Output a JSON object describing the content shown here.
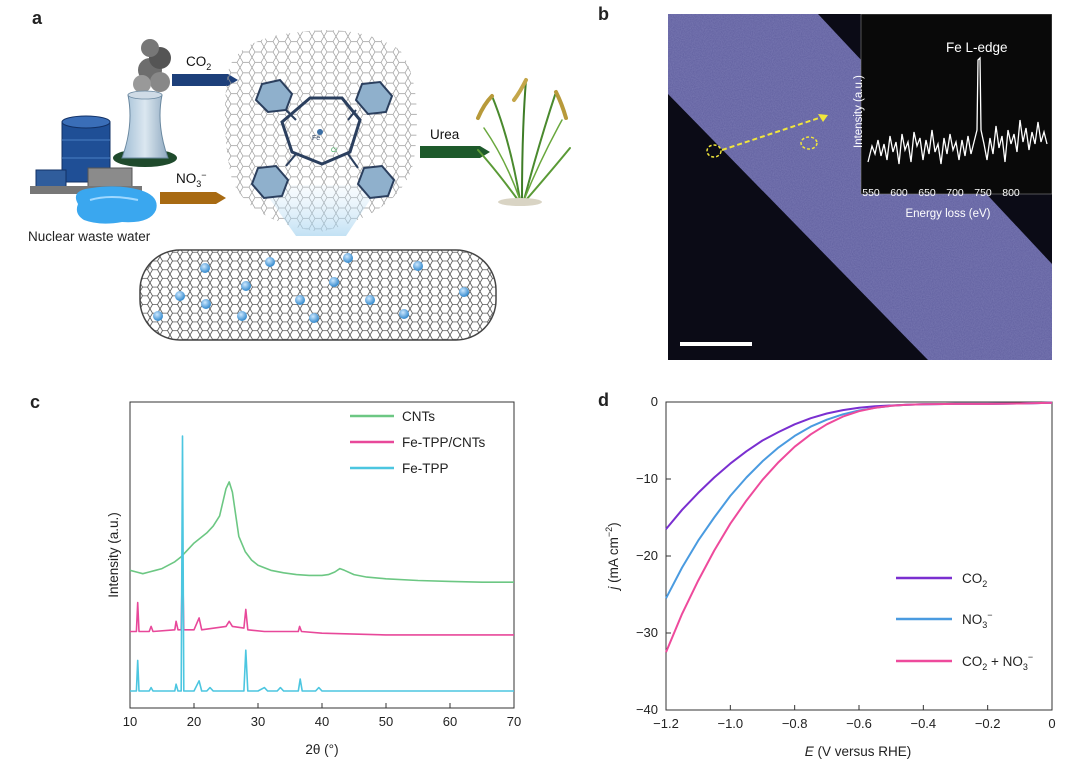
{
  "panels": {
    "a": {
      "label": "a",
      "arrows": {
        "co2": "CO",
        "co2_sub": "2",
        "no3": "NO",
        "no3_sub": "3",
        "no3_sup": "−",
        "urea": "Urea"
      },
      "source_label": "Nuclear waste water",
      "molecule_atoms": {
        "metal": "Fe",
        "ligand": "Cl"
      }
    },
    "b": {
      "label": "b",
      "inset_title": "Fe L-edge",
      "inset_ylabel": "Intensity (a.u.)",
      "inset_xlabel": "Energy loss (eV)",
      "inset_ticks": [
        "550",
        "600",
        "650",
        "700",
        "750",
        "800"
      ]
    },
    "c": {
      "label": "c"
    },
    "d": {
      "label": "d"
    }
  },
  "colors": {
    "cnts": "#6cc783",
    "fe_tpp_cnts": "#e8489a",
    "fe_tpp": "#4cc6e0",
    "co2": "#7a2fd0",
    "no3": "#4a9be0",
    "co2_no3": "#ee4a9c",
    "arrow_blue": "#1d3f7a",
    "arrow_brown": "#a86a12",
    "arrow_green": "#1e5a2b",
    "micrograph_bg": "#0b0b16",
    "tube": "#6b6aa6",
    "inset_bg": "#090909"
  },
  "chart_data": [
    {
      "id": "c",
      "type": "line",
      "xlabel": "2θ (°)",
      "ylabel": "Intensity (a.u.)",
      "xlim": [
        10,
        70
      ],
      "x_ticks": [
        10,
        20,
        30,
        40,
        50,
        60,
        70
      ],
      "legend_position": "top-right",
      "series": [
        {
          "name": "CNTs",
          "color_key": "cnts",
          "points": [
            [
              10,
              0.81
            ],
            [
              11,
              0.8
            ],
            [
              12,
              0.79
            ],
            [
              13,
              0.8
            ],
            [
              14,
              0.81
            ],
            [
              15,
              0.82
            ],
            [
              16,
              0.84
            ],
            [
              17,
              0.86
            ],
            [
              18,
              0.89
            ],
            [
              19,
              0.93
            ],
            [
              20,
              0.97
            ],
            [
              21,
              1.0
            ],
            [
              22,
              1.03
            ],
            [
              23,
              1.07
            ],
            [
              24,
              1.13
            ],
            [
              25,
              1.29
            ],
            [
              25.5,
              1.33
            ],
            [
              26,
              1.27
            ],
            [
              26.5,
              1.14
            ],
            [
              27,
              1.01
            ],
            [
              28,
              0.92
            ],
            [
              29,
              0.87
            ],
            [
              30,
              0.84
            ],
            [
              32,
              0.81
            ],
            [
              34,
              0.795
            ],
            [
              36,
              0.785
            ],
            [
              38,
              0.78
            ],
            [
              40,
              0.78
            ],
            [
              41,
              0.785
            ],
            [
              42,
              0.8
            ],
            [
              42.8,
              0.82
            ],
            [
              43.5,
              0.81
            ],
            [
              45,
              0.785
            ],
            [
              47,
              0.77
            ],
            [
              50,
              0.76
            ],
            [
              55,
              0.75
            ],
            [
              60,
              0.745
            ],
            [
              65,
              0.74
            ],
            [
              70,
              0.74
            ]
          ]
        },
        {
          "name": "Fe-TPP/CNTs",
          "color_key": "fe_tpp_cnts",
          "points": [
            [
              10,
              0.45
            ],
            [
              11,
              0.45
            ],
            [
              11.2,
              0.62
            ],
            [
              11.4,
              0.45
            ],
            [
              13,
              0.45
            ],
            [
              13.3,
              0.48
            ],
            [
              13.6,
              0.45
            ],
            [
              17,
              0.46
            ],
            [
              17.2,
              0.51
            ],
            [
              17.5,
              0.46
            ],
            [
              18,
              0.46
            ],
            [
              18.2,
              0.9
            ],
            [
              18.4,
              0.46
            ],
            [
              20,
              0.46
            ],
            [
              20.8,
              0.53
            ],
            [
              21.2,
              0.46
            ],
            [
              25,
              0.48
            ],
            [
              25.5,
              0.51
            ],
            [
              26,
              0.48
            ],
            [
              27.8,
              0.47
            ],
            [
              28.1,
              0.58
            ],
            [
              28.4,
              0.46
            ],
            [
              31,
              0.45
            ],
            [
              34,
              0.45
            ],
            [
              36.3,
              0.45
            ],
            [
              36.5,
              0.48
            ],
            [
              36.8,
              0.45
            ],
            [
              40,
              0.44
            ],
            [
              50,
              0.43
            ],
            [
              60,
              0.43
            ],
            [
              70,
              0.43
            ]
          ]
        },
        {
          "name": "Fe-TPP",
          "color_key": "fe_tpp",
          "points": [
            [
              10,
              0.1
            ],
            [
              11,
              0.1
            ],
            [
              11.2,
              0.28
            ],
            [
              11.4,
              0.1
            ],
            [
              13,
              0.1
            ],
            [
              13.3,
              0.12
            ],
            [
              13.6,
              0.1
            ],
            [
              17,
              0.1
            ],
            [
              17.2,
              0.14
            ],
            [
              17.5,
              0.1
            ],
            [
              18,
              0.1
            ],
            [
              18.2,
              1.6
            ],
            [
              18.4,
              0.1
            ],
            [
              20,
              0.1
            ],
            [
              20.8,
              0.16
            ],
            [
              21.2,
              0.1
            ],
            [
              22,
              0.1
            ],
            [
              22.5,
              0.12
            ],
            [
              23,
              0.1
            ],
            [
              27.8,
              0.1
            ],
            [
              28.1,
              0.34
            ],
            [
              28.4,
              0.1
            ],
            [
              30,
              0.1
            ],
            [
              31,
              0.12
            ],
            [
              31.5,
              0.1
            ],
            [
              33,
              0.1
            ],
            [
              33.5,
              0.12
            ],
            [
              34,
              0.1
            ],
            [
              36.3,
              0.1
            ],
            [
              36.6,
              0.17
            ],
            [
              36.9,
              0.1
            ],
            [
              39,
              0.1
            ],
            [
              39.5,
              0.12
            ],
            [
              40,
              0.1
            ],
            [
              50,
              0.1
            ],
            [
              60,
              0.1
            ],
            [
              70,
              0.1
            ]
          ]
        }
      ]
    },
    {
      "id": "d",
      "type": "line",
      "xlabel_italic": "E",
      "xlabel_rest": " (V versus RHE)",
      "ylabel_italic": "j",
      "ylabel_rest": " (mA cm",
      "ylabel_sup": "−2",
      "ylabel_end": ")",
      "xlim": [
        -1.2,
        0
      ],
      "ylim": [
        -40,
        0
      ],
      "x_ticks": [
        "−1.2",
        "−1.0",
        "−0.8",
        "−0.6",
        "−0.4",
        "−0.2",
        "0"
      ],
      "y_ticks": [
        "0",
        "−10",
        "−20",
        "−30",
        "−40"
      ],
      "legend_position": "bottom-right",
      "series": [
        {
          "name": "CO",
          "sub": "2",
          "sup": "",
          "tail": "",
          "color_key": "co2",
          "x": [
            -1.2,
            -1.15,
            -1.1,
            -1.05,
            -1.0,
            -0.95,
            -0.9,
            -0.85,
            -0.8,
            -0.75,
            -0.7,
            -0.65,
            -0.6,
            -0.55,
            -0.5,
            -0.45,
            -0.4,
            -0.3,
            -0.2,
            -0.1,
            0
          ],
          "y": [
            -16.5,
            -14.0,
            -11.8,
            -9.8,
            -8.0,
            -6.4,
            -5.0,
            -3.9,
            -2.9,
            -2.1,
            -1.5,
            -1.05,
            -0.75,
            -0.55,
            -0.45,
            -0.35,
            -0.3,
            -0.25,
            -0.25,
            -0.2,
            -0.1
          ]
        },
        {
          "name": "NO",
          "sub": "3",
          "sup": "−",
          "tail": "",
          "color_key": "no3",
          "x": [
            -1.2,
            -1.15,
            -1.1,
            -1.05,
            -1.0,
            -0.95,
            -0.9,
            -0.85,
            -0.8,
            -0.75,
            -0.7,
            -0.65,
            -0.6,
            -0.55,
            -0.5,
            -0.45,
            -0.4,
            -0.3,
            -0.2,
            -0.1,
            0
          ],
          "y": [
            -25.5,
            -21.5,
            -18.0,
            -15.0,
            -12.2,
            -9.8,
            -7.7,
            -5.9,
            -4.4,
            -3.2,
            -2.3,
            -1.6,
            -1.1,
            -0.75,
            -0.5,
            -0.35,
            -0.3,
            -0.25,
            -0.25,
            -0.2,
            -0.1
          ]
        },
        {
          "name": "CO",
          "sub": "2",
          "sup": "",
          "tail": " + NO",
          "tail_sub": "3",
          "tail_sup": "−",
          "color_key": "co2_no3",
          "x": [
            -1.2,
            -1.15,
            -1.1,
            -1.05,
            -1.0,
            -0.95,
            -0.9,
            -0.85,
            -0.8,
            -0.75,
            -0.7,
            -0.65,
            -0.6,
            -0.55,
            -0.5,
            -0.45,
            -0.4,
            -0.3,
            -0.2,
            -0.1,
            0
          ],
          "y": [
            -32.5,
            -27.5,
            -23.2,
            -19.3,
            -15.8,
            -12.8,
            -10.1,
            -7.8,
            -5.8,
            -4.2,
            -2.9,
            -1.9,
            -1.2,
            -0.75,
            -0.5,
            -0.35,
            -0.3,
            -0.25,
            -0.25,
            -0.2,
            -0.1
          ]
        }
      ]
    }
  ]
}
